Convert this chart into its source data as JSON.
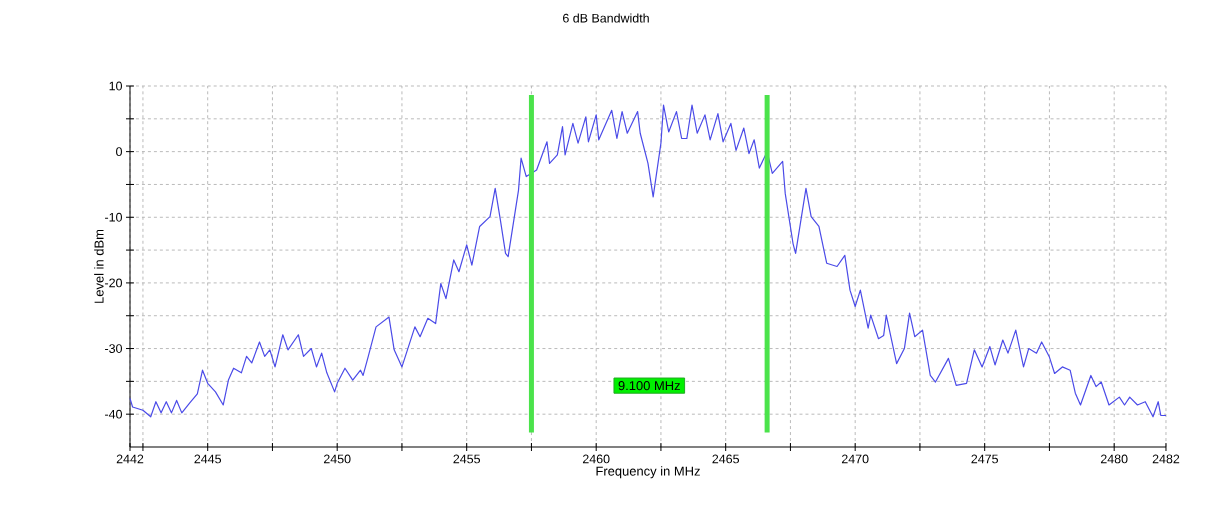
{
  "chart_data": {
    "type": "line",
    "title": "6 dB Bandwidth",
    "xlabel": "Frequency in MHz",
    "ylabel": "Level in dBm",
    "annotations": [
      "9.100 MHz"
    ],
    "xlim": [
      2442,
      2482
    ],
    "ylim": [
      -45,
      10
    ],
    "xticks": [
      2442,
      {
        "value": 2442.5,
        "label": null
      },
      2445,
      {
        "value": 2447.5,
        "label": null
      },
      2450,
      {
        "value": 2452.5,
        "label": null
      },
      2455,
      {
        "value": 2457.5,
        "label": null
      },
      2460,
      {
        "value": 2462.5,
        "label": null
      },
      2465,
      {
        "value": 2467.5,
        "label": null
      },
      2470,
      {
        "value": 2472.5,
        "label": null
      },
      2475,
      {
        "value": 2477.5,
        "label": null
      },
      2480,
      2482
    ],
    "yticks": [
      10,
      {
        "value": 5,
        "label": null
      },
      0,
      {
        "value": -5,
        "label": null
      },
      -10,
      {
        "value": -15,
        "label": null
      },
      -20,
      {
        "value": -25,
        "label": null
      },
      -30,
      {
        "value": -35,
        "label": null
      },
      -40
    ],
    "grid": true,
    "ref_lines": [
      {
        "axis": "x",
        "value": 2457.5,
        "color": "#4be34b"
      },
      {
        "axis": "x",
        "value": 2466.6,
        "color": "#4be34b"
      }
    ],
    "x": [
      2442.0,
      2442.1,
      2442.5,
      2442.8,
      2443.0,
      2443.2,
      2443.4,
      2443.6,
      2443.8,
      2444.0,
      2444.3,
      2444.6,
      2444.8,
      2445.0,
      2445.3,
      2445.6,
      2445.8,
      2446.0,
      2446.3,
      2446.5,
      2446.7,
      2447.0,
      2447.2,
      2447.4,
      2447.6,
      2447.9,
      2448.1,
      2448.5,
      2448.7,
      2449.0,
      2449.2,
      2449.4,
      2449.6,
      2449.9,
      2450.0,
      2450.3,
      2450.6,
      2450.9,
      2451.0,
      2451.2,
      2451.5,
      2452.0,
      2452.2,
      2452.5,
      2453.0,
      2453.2,
      2453.5,
      2453.8,
      2454.0,
      2454.2,
      2454.5,
      2454.7,
      2455.0,
      2455.2,
      2455.5,
      2455.9,
      2456.1,
      2456.3,
      2456.5,
      2456.6,
      2457.0,
      2457.1,
      2457.3,
      2457.7,
      2458.1,
      2458.2,
      2458.5,
      2458.7,
      2458.8,
      2459.1,
      2459.3,
      2459.6,
      2459.7,
      2460.0,
      2460.1,
      2460.6,
      2460.8,
      2461.0,
      2461.2,
      2461.6,
      2461.7,
      2462.0,
      2462.2,
      2462.5,
      2462.6,
      2462.8,
      2463.1,
      2463.3,
      2463.5,
      2463.7,
      2463.9,
      2464.2,
      2464.4,
      2464.7,
      2464.9,
      2465.2,
      2465.4,
      2465.7,
      2465.9,
      2466.1,
      2466.3,
      2466.6,
      2466.8,
      2467.2,
      2467.3,
      2467.6,
      2467.7,
      2468.1,
      2468.3,
      2468.6,
      2468.9,
      2469.3,
      2469.6,
      2469.8,
      2470.0,
      2470.2,
      2470.5,
      2470.6,
      2470.9,
      2471.1,
      2471.2,
      2471.6,
      2471.9,
      2472.1,
      2472.3,
      2472.6,
      2472.9,
      2473.1,
      2473.6,
      2473.9,
      2474.3,
      2474.6,
      2474.9,
      2475.2,
      2475.4,
      2475.7,
      2475.9,
      2476.2,
      2476.5,
      2476.7,
      2477.0,
      2477.2,
      2477.5,
      2477.7,
      2478.0,
      2478.3,
      2478.5,
      2478.7,
      2479.1,
      2479.3,
      2479.5,
      2479.8,
      2480.2,
      2480.4,
      2480.6,
      2480.9,
      2481.2,
      2481.5,
      2481.7,
      2481.8,
      2482.0
    ],
    "series": [
      {
        "color": "#4b4be8",
        "values": [
          -37.6,
          -38.9,
          -39.4,
          -40.4,
          -38.1,
          -39.8,
          -38.1,
          -39.8,
          -37.9,
          -39.8,
          -38.3,
          -36.9,
          -33.3,
          -35.3,
          -36.6,
          -38.6,
          -34.8,
          -33.0,
          -33.7,
          -31.2,
          -32.2,
          -29.0,
          -31.2,
          -30.2,
          -32.8,
          -27.9,
          -30.2,
          -27.9,
          -31.2,
          -30.0,
          -32.8,
          -30.7,
          -33.7,
          -36.6,
          -35.3,
          -33.0,
          -34.8,
          -33.3,
          -34.1,
          -31.2,
          -26.7,
          -25.2,
          -30.2,
          -32.8,
          -26.7,
          -28.2,
          -25.4,
          -26.2,
          -20.1,
          -22.4,
          -16.5,
          -18.3,
          -14.2,
          -17.3,
          -11.4,
          -9.9,
          -5.6,
          -10.4,
          -15.5,
          -16.0,
          -5.9,
          -1.0,
          -3.8,
          -2.8,
          1.5,
          -1.8,
          -0.5,
          3.8,
          -0.5,
          4.3,
          1.3,
          5.3,
          1.5,
          5.6,
          1.8,
          6.3,
          2.0,
          6.1,
          2.8,
          6.1,
          2.8,
          -1.8,
          -6.9,
          1.3,
          7.1,
          3.0,
          6.1,
          2.0,
          2.0,
          7.1,
          2.8,
          5.6,
          1.8,
          5.8,
          1.5,
          4.3,
          0.2,
          3.6,
          -0.3,
          1.8,
          -2.5,
          0.0,
          -3.3,
          -1.5,
          -6.4,
          -14.0,
          -15.5,
          -5.6,
          -9.9,
          -11.4,
          -17.0,
          -17.5,
          -15.8,
          -21.1,
          -23.6,
          -21.1,
          -26.9,
          -24.9,
          -28.5,
          -28.0,
          -24.9,
          -32.3,
          -30.0,
          -24.6,
          -28.2,
          -27.2,
          -34.1,
          -35.1,
          -31.5,
          -35.6,
          -35.3,
          -30.2,
          -32.8,
          -29.7,
          -32.5,
          -28.7,
          -30.7,
          -27.2,
          -32.8,
          -30.0,
          -30.7,
          -29.0,
          -31.3,
          -33.8,
          -32.8,
          -33.3,
          -36.8,
          -38.6,
          -34.1,
          -35.8,
          -35.1,
          -38.6,
          -37.4,
          -38.6,
          -37.4,
          -38.6,
          -38.1,
          -40.4,
          -38.1,
          -40.2,
          -40.2
        ]
      }
    ]
  }
}
